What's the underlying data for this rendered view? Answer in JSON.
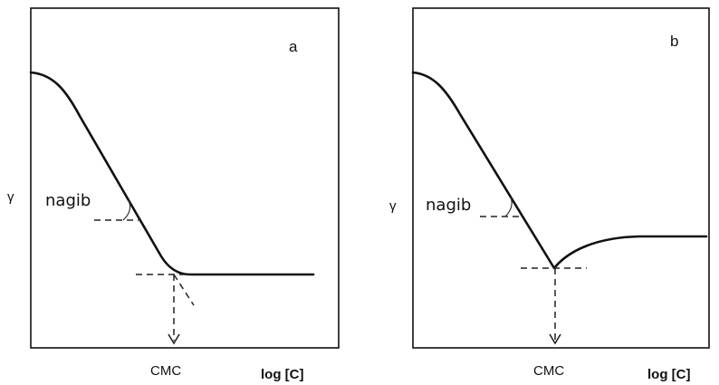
{
  "chart_data": [
    {
      "type": "line",
      "panel_label": "a",
      "xlabel": "log [C]",
      "ylabel": "γ",
      "annotations": {
        "slope_label": "nagib",
        "cmc_label": "CMC"
      },
      "curve_description": "surface tension plateau, linear decrease, sharp break at CMC then flat plateau",
      "series": [
        {
          "name": "",
          "shape": "decrease-then-plateau"
        }
      ],
      "line_color": "#111111"
    },
    {
      "type": "line",
      "panel_label": "b",
      "xlabel": "log [C]",
      "ylabel": "γ",
      "annotations": {
        "slope_label": "nagib",
        "cmc_label": "CMC"
      },
      "series": [
        {
          "name": "",
          "shape": "decrease-minimum-then-rise"
        }
      ],
      "line_color": "#111111"
    }
  ]
}
